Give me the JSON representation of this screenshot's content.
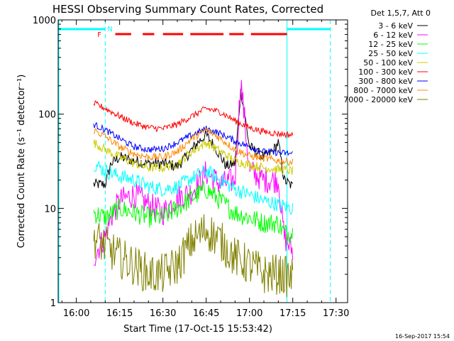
{
  "chart_data": {
    "type": "line",
    "title": "HESSI Observing Summary Count Rates, Corrected",
    "xlabel": "Start Time (17-Oct-15 15:53:42)",
    "ylabel": "Corrected Count Rate (s⁻¹ detector⁻¹)",
    "xscale": "time",
    "yscale": "log",
    "xlim": [
      "15:53:42",
      "17:34:00"
    ],
    "ylim": [
      1,
      1000
    ],
    "x_ticks": [
      "16:00",
      "16:15",
      "16:30",
      "16:45",
      "17:00",
      "17:15",
      "17:30"
    ],
    "y_ticks": [
      "1",
      "10",
      "100",
      "1000"
    ],
    "legend_header": "Det 1,5,7, Att 0",
    "legend_position": "right",
    "timestamp": "16-Sep-2017 15:54",
    "series": [
      {
        "name": "3 - 6 keV",
        "color": "#000000",
        "x": [
          "16:06",
          "16:10",
          "16:12",
          "16:15",
          "16:20",
          "16:25",
          "16:30",
          "16:35",
          "16:38",
          "16:42",
          "16:45",
          "16:48",
          "16:52",
          "16:55",
          "16:57",
          "17:00",
          "17:05",
          "17:08",
          "17:10",
          "17:12",
          "17:15"
        ],
        "y": [
          18,
          18,
          30,
          35,
          32,
          30,
          30,
          28,
          35,
          50,
          60,
          45,
          28,
          30,
          180,
          45,
          35,
          40,
          50,
          20,
          17
        ]
      },
      {
        "name": "6 - 12 keV",
        "color": "#ff00ff",
        "x": [
          "16:06",
          "16:08",
          "16:10",
          "16:12",
          "16:15",
          "16:20",
          "16:25",
          "16:30",
          "16:35",
          "16:40",
          "16:45",
          "16:50",
          "16:55",
          "16:57",
          "17:00",
          "17:05",
          "17:10",
          "17:12",
          "17:15"
        ],
        "y": [
          3,
          4,
          5,
          8,
          12,
          14,
          11,
          9,
          13,
          15,
          24,
          18,
          20,
          230,
          25,
          20,
          20,
          5,
          3.5
        ]
      },
      {
        "name": "12 - 25 keV",
        "color": "#00ff00",
        "x": [
          "16:06",
          "16:10",
          "16:15",
          "16:20",
          "16:25",
          "16:30",
          "16:35",
          "16:40",
          "16:45",
          "16:50",
          "16:55",
          "17:00",
          "17:05",
          "17:10",
          "17:12",
          "17:15"
        ],
        "y": [
          9,
          8,
          10,
          9,
          8,
          8,
          10,
          13,
          16,
          12,
          9,
          8,
          7,
          7,
          5.5,
          5.5
        ]
      },
      {
        "name": "25 - 50 keV",
        "color": "#00ffff",
        "x": [
          "16:06",
          "16:10",
          "16:15",
          "16:20",
          "16:25",
          "16:30",
          "16:35",
          "16:40",
          "16:45",
          "16:50",
          "16:55",
          "17:00",
          "17:05",
          "17:10",
          "17:15"
        ],
        "y": [
          30,
          25,
          22,
          20,
          17,
          16,
          17,
          21,
          25,
          20,
          16,
          14,
          12,
          11,
          10
        ]
      },
      {
        "name": "50 - 100 keV",
        "color": "#cccc00",
        "x": [
          "16:06",
          "16:10",
          "16:15",
          "16:20",
          "16:25",
          "16:30",
          "16:35",
          "16:40",
          "16:45",
          "16:50",
          "16:55",
          "17:00",
          "17:05",
          "17:10",
          "17:15"
        ],
        "y": [
          50,
          42,
          35,
          30,
          27,
          27,
          30,
          40,
          50,
          40,
          32,
          29,
          27,
          26,
          25
        ]
      },
      {
        "name": "100 - 300 keV",
        "color": "#ff0000",
        "x": [
          "16:06",
          "16:10",
          "16:15",
          "16:20",
          "16:25",
          "16:30",
          "16:35",
          "16:40",
          "16:45",
          "16:50",
          "16:55",
          "17:00",
          "17:05",
          "17:10",
          "17:15"
        ],
        "y": [
          130,
          115,
          95,
          80,
          72,
          70,
          78,
          95,
          115,
          105,
          85,
          72,
          65,
          62,
          60
        ]
      },
      {
        "name": "300 - 800 keV",
        "color": "#0000ff",
        "x": [
          "16:06",
          "16:10",
          "16:15",
          "16:20",
          "16:25",
          "16:30",
          "16:35",
          "16:40",
          "16:45",
          "16:50",
          "16:55",
          "17:00",
          "17:05",
          "17:10",
          "17:15"
        ],
        "y": [
          78,
          68,
          55,
          45,
          42,
          43,
          50,
          60,
          70,
          62,
          52,
          45,
          40,
          39,
          38
        ]
      },
      {
        "name": "800 - 7000 keV",
        "color": "#ff8800",
        "x": [
          "16:06",
          "16:10",
          "16:15",
          "16:20",
          "16:25",
          "16:30",
          "16:35",
          "16:40",
          "16:45",
          "16:50",
          "16:55",
          "17:00",
          "17:05",
          "17:10",
          "17:15"
        ],
        "y": [
          68,
          58,
          45,
          38,
          35,
          35,
          40,
          55,
          68,
          55,
          42,
          36,
          34,
          32,
          31
        ]
      },
      {
        "name": "7000 - 20000 keV",
        "color": "#808000",
        "x": [
          "16:06",
          "16:10",
          "16:15",
          "16:20",
          "16:25",
          "16:30",
          "16:35",
          "16:40",
          "16:45",
          "16:50",
          "16:55",
          "17:00",
          "17:05",
          "17:10",
          "17:15"
        ],
        "y": [
          5,
          4,
          3,
          2.5,
          2,
          2,
          2.5,
          4.5,
          6,
          4.5,
          3,
          2.5,
          2,
          2,
          1.8
        ]
      }
    ],
    "annotations": {
      "flag_f_label": "F",
      "flag_n_label": "N",
      "night_color": "#00ffff",
      "flare_color": "#ff0000",
      "night_bars": [
        [
          "15:53:42",
          "16:10:00"
        ],
        [
          "17:13:00",
          "17:28:00"
        ]
      ],
      "flare_segments": [
        [
          "16:13:30",
          "16:19:00"
        ],
        [
          "16:23:00",
          "16:27:00"
        ],
        [
          "16:30:00",
          "16:37:00"
        ],
        [
          "16:39:30",
          "16:51:00"
        ],
        [
          "16:53:00",
          "16:58:00"
        ],
        [
          "17:00:30",
          "17:13:00"
        ]
      ],
      "vlines_solid": [
        "15:53:42",
        "17:13:00"
      ],
      "vlines_dashed": [
        "16:10:00",
        "17:28:00"
      ]
    }
  }
}
